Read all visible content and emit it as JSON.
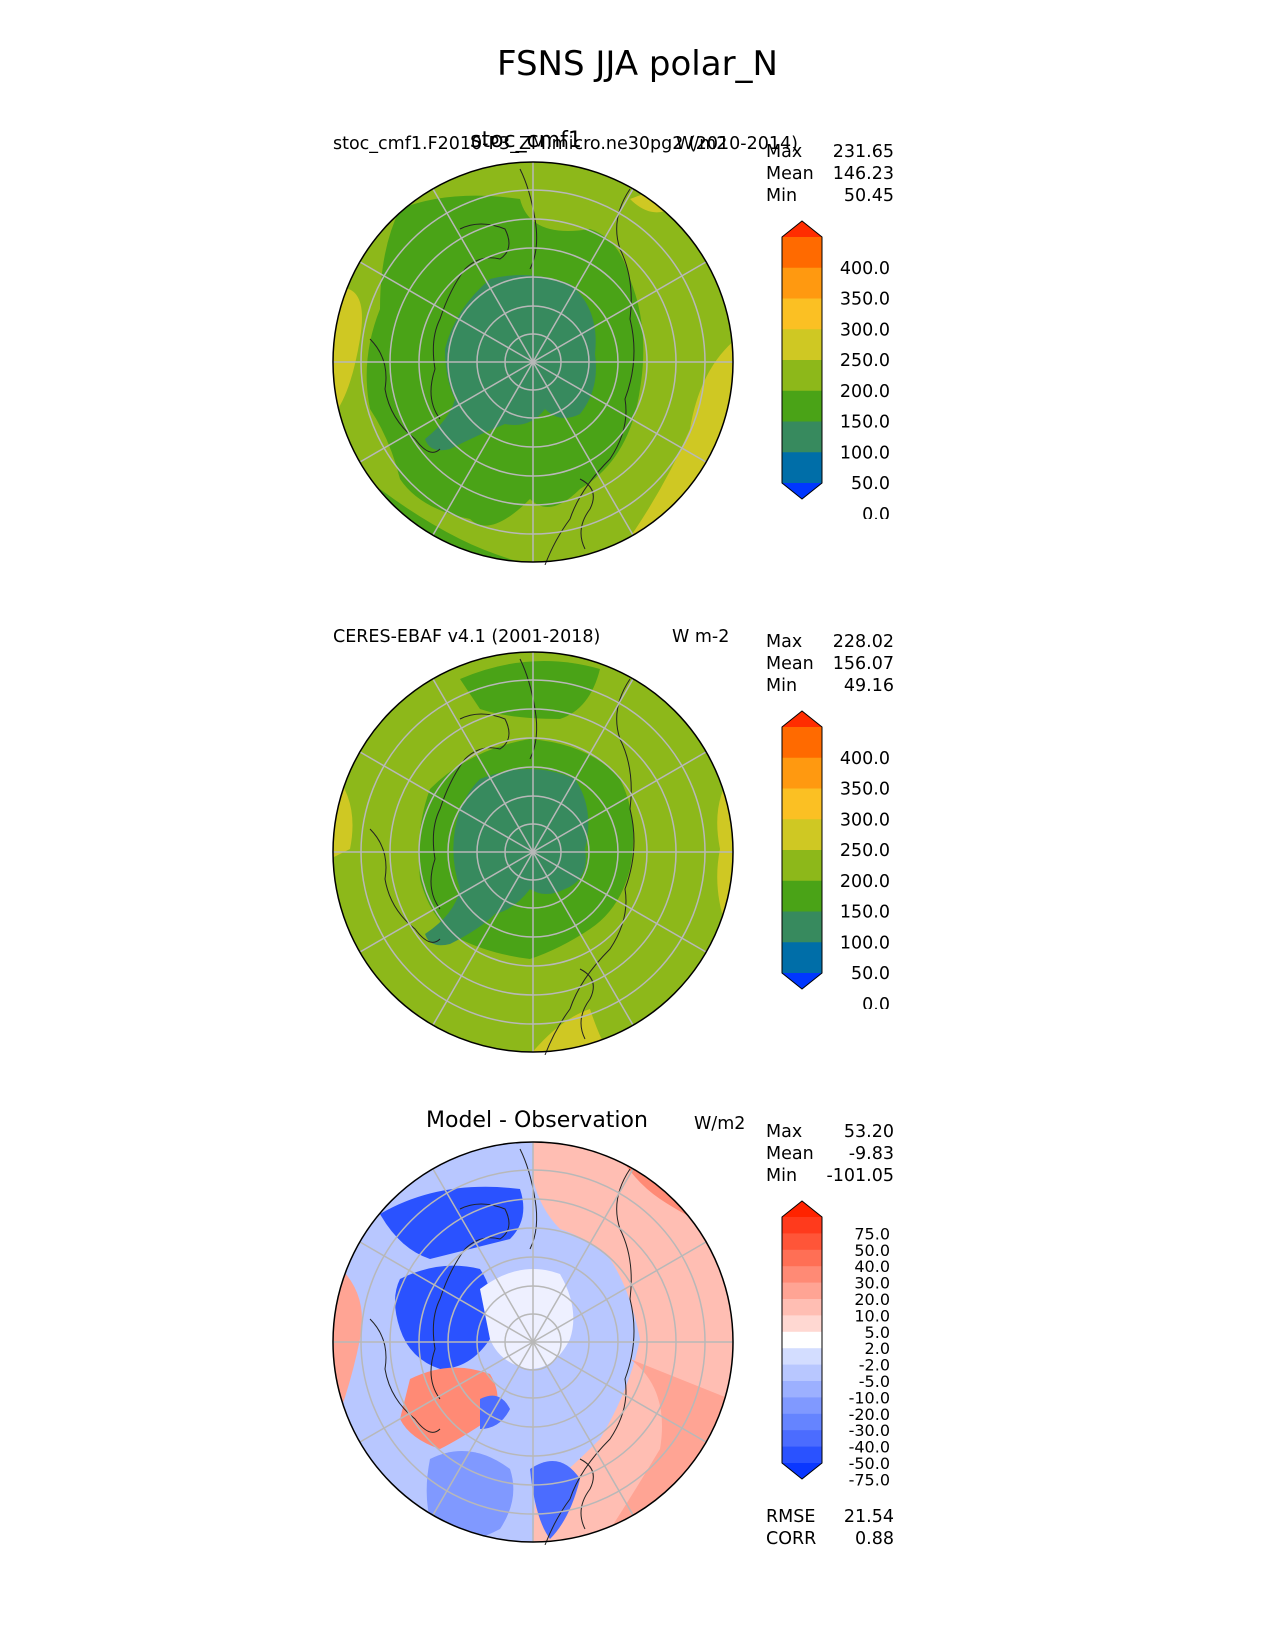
{
  "figure": {
    "title": "FSNS JJA polar_N"
  },
  "panels": [
    {
      "id": "test",
      "center_title": "stoc_cmf1",
      "left_label": "stoc_cmf1.F2010-P3_ZM.micro.ne30pg2 (2010-2014)",
      "units": "W/m2",
      "stats": [
        {
          "label": "Max",
          "value": "231.65"
        },
        {
          "label": "Mean",
          "value": "146.23"
        },
        {
          "label": "Min",
          "value": "50.45"
        }
      ],
      "colorbar_ticks": [
        "400.0",
        "350.0",
        "300.0",
        "250.0",
        "200.0",
        "150.0",
        "100.0",
        "50.0",
        "0.0"
      ]
    },
    {
      "id": "reference",
      "center_title": "",
      "left_label": "CERES-EBAF v4.1 (2001-2018)",
      "units": "W m-2",
      "stats": [
        {
          "label": "Max",
          "value": "228.02"
        },
        {
          "label": "Mean",
          "value": "156.07"
        },
        {
          "label": "Min",
          "value": "49.16"
        }
      ],
      "colorbar_ticks": [
        "400.0",
        "350.0",
        "300.0",
        "250.0",
        "200.0",
        "150.0",
        "100.0",
        "50.0",
        "0.0"
      ]
    },
    {
      "id": "difference",
      "center_title": "Model - Observation",
      "left_label": "",
      "units": "W/m2",
      "stats": [
        {
          "label": "Max",
          "value": "53.20"
        },
        {
          "label": "Mean",
          "value": "-9.83"
        },
        {
          "label": "Min",
          "value": "-101.05"
        }
      ],
      "colorbar_ticks": [
        "75.0",
        "50.0",
        "40.0",
        "30.0",
        "20.0",
        "10.0",
        "5.0",
        "2.0",
        "-2.0",
        "-5.0",
        "-10.0",
        "-20.0",
        "-30.0",
        "-40.0",
        "-50.0",
        "-75.0"
      ],
      "metrics": [
        {
          "label": "RMSE",
          "value": "21.54"
        },
        {
          "label": "CORR",
          "value": "0.88"
        }
      ]
    }
  ],
  "colors": {
    "abs_levels": [
      "#0037ff",
      "#006ea8",
      "#378a5e",
      "#4aa317",
      "#8db81a",
      "#cfc823",
      "#fbc023",
      "#ff9910",
      "#ff6a00",
      "#ff2d00"
    ],
    "diff_levels": [
      "#0a37ff",
      "#2a52ff",
      "#4b6cff",
      "#6584ff",
      "#8099ff",
      "#9cb0ff",
      "#b8c7ff",
      "#d3ddff",
      "#ffffff",
      "#ffd8d2",
      "#ffbeb3",
      "#ffa494",
      "#ff8a75",
      "#ff6f55",
      "#ff5538",
      "#ff3a1c",
      "#ff2300"
    ]
  }
}
